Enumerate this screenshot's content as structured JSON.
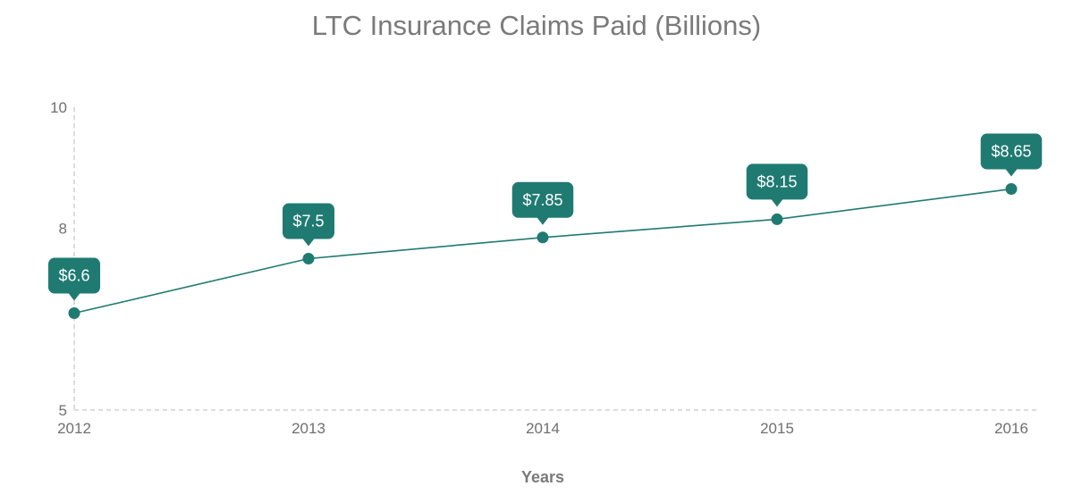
{
  "chart_data": {
    "type": "line",
    "title": "LTC Insurance Claims Paid (Billions)",
    "xlabel": "Years",
    "ylabel": "",
    "categories": [
      "2012",
      "2013",
      "2014",
      "2015",
      "2016"
    ],
    "series": [
      {
        "values": [
          6.6,
          7.5,
          7.85,
          8.15,
          8.65
        ],
        "data_labels": [
          "$6.6",
          "$7.5",
          "$7.85",
          "$8.15",
          "$8.65"
        ],
        "color": "#1f7a72"
      }
    ],
    "ylim": [
      5,
      10
    ],
    "y_ticks": [
      5,
      8,
      10
    ],
    "y_tick_labels": [
      "5",
      "8",
      "10"
    ],
    "grid": false,
    "axis_line_style": "dashed",
    "axis_color": "#c8c8c8",
    "label_bubble_color": "#1f7a72"
  }
}
